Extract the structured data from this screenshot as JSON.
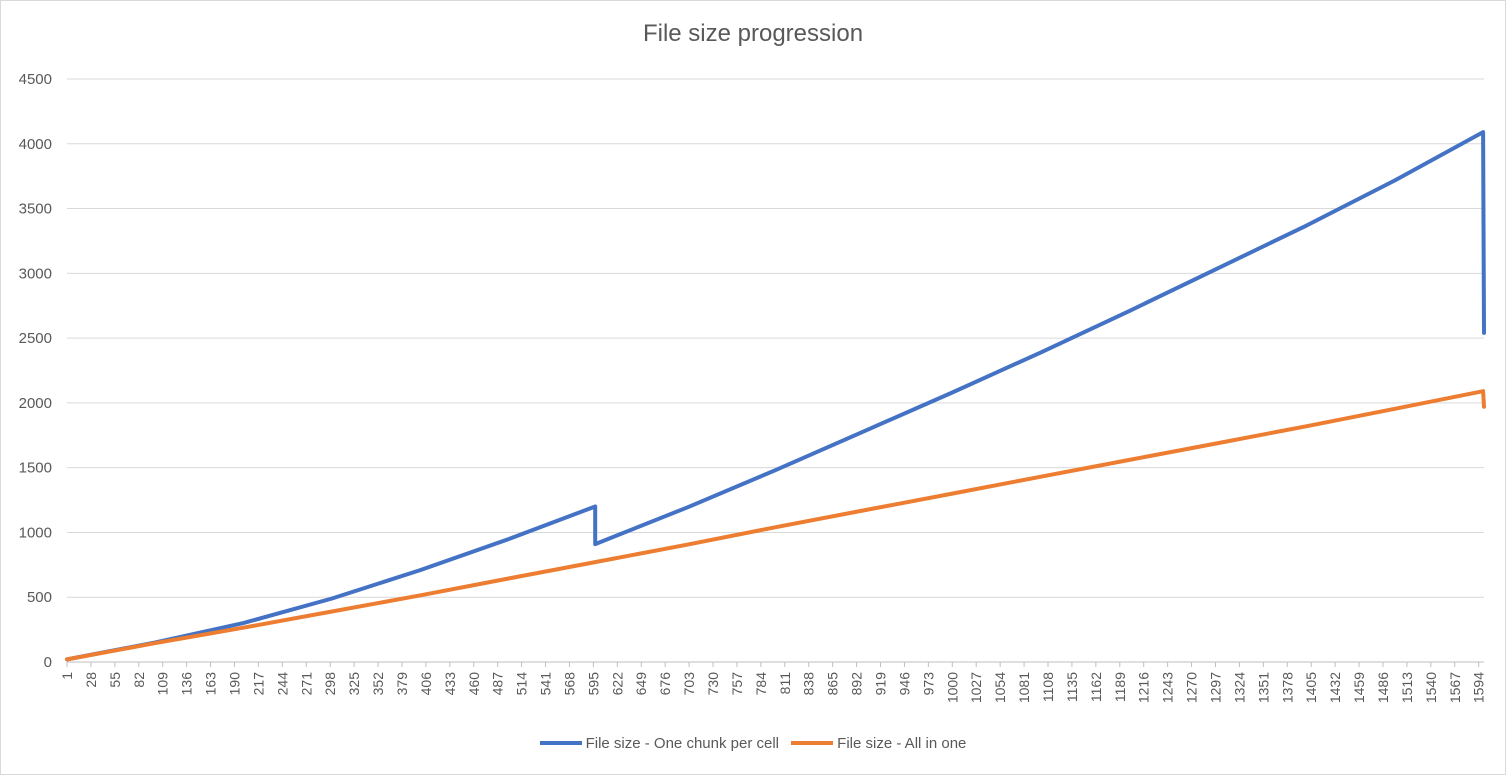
{
  "chart_data": {
    "type": "line",
    "title": "File size progression",
    "xlabel": "",
    "ylabel": "",
    "ylim": [
      0,
      4500
    ],
    "yticks": [
      0,
      500,
      1000,
      1500,
      2000,
      2500,
      3000,
      3500,
      4000,
      4500
    ],
    "xticks": [
      1,
      28,
      55,
      82,
      109,
      136,
      163,
      190,
      217,
      244,
      271,
      298,
      325,
      352,
      379,
      406,
      433,
      460,
      487,
      514,
      541,
      568,
      595,
      622,
      649,
      676,
      703,
      730,
      757,
      784,
      811,
      838,
      865,
      892,
      919,
      946,
      973,
      1000,
      1027,
      1054,
      1081,
      1108,
      1135,
      1162,
      1189,
      1216,
      1243,
      1270,
      1297,
      1324,
      1351,
      1378,
      1405,
      1432,
      1459,
      1486,
      1513,
      1540,
      1567,
      1594
    ],
    "xrange": [
      1,
      1600
    ],
    "grid": true,
    "legend_position": "bottom",
    "series": [
      {
        "name": "File size - One chunk per cell",
        "color": "#4472c4",
        "points": [
          [
            1,
            20
          ],
          [
            100,
            150
          ],
          [
            200,
            300
          ],
          [
            300,
            490
          ],
          [
            400,
            710
          ],
          [
            500,
            950
          ],
          [
            597,
            1200
          ],
          [
            597,
            910
          ],
          [
            700,
            1190
          ],
          [
            800,
            1480
          ],
          [
            900,
            1780
          ],
          [
            1000,
            2080
          ],
          [
            1100,
            2390
          ],
          [
            1200,
            2710
          ],
          [
            1300,
            3040
          ],
          [
            1400,
            3370
          ],
          [
            1500,
            3720
          ],
          [
            1599,
            4090
          ],
          [
            1600,
            2540
          ]
        ]
      },
      {
        "name": "File size - All in one",
        "color": "#ed7d31",
        "points": [
          [
            1,
            20
          ],
          [
            100,
            145
          ],
          [
            200,
            265
          ],
          [
            300,
            390
          ],
          [
            400,
            515
          ],
          [
            500,
            645
          ],
          [
            600,
            775
          ],
          [
            700,
            905
          ],
          [
            800,
            1040
          ],
          [
            900,
            1170
          ],
          [
            1000,
            1300
          ],
          [
            1100,
            1430
          ],
          [
            1200,
            1560
          ],
          [
            1300,
            1690
          ],
          [
            1400,
            1820
          ],
          [
            1500,
            1955
          ],
          [
            1599,
            2090
          ],
          [
            1600,
            1970
          ]
        ]
      }
    ]
  }
}
